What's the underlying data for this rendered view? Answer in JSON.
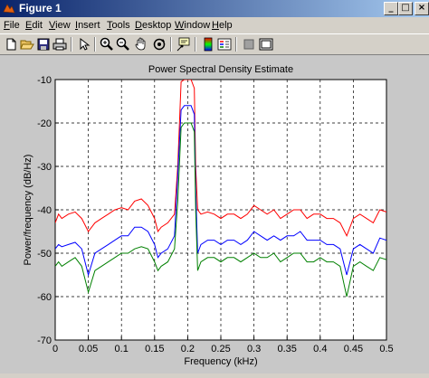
{
  "window": {
    "title": "Figure 1",
    "minimize_label": "_",
    "maximize_label": "□",
    "close_label": "×"
  },
  "menu": {
    "items": [
      {
        "label": "File"
      },
      {
        "label": "Edit"
      },
      {
        "label": "View"
      },
      {
        "label": "Insert"
      },
      {
        "label": "Tools"
      },
      {
        "label": "Desktop"
      },
      {
        "label": "Window"
      },
      {
        "label": "Help"
      }
    ]
  },
  "toolbar": {
    "buttons": [
      {
        "icon": "new-file-icon"
      },
      {
        "icon": "open-folder-icon"
      },
      {
        "icon": "save-icon"
      },
      {
        "icon": "print-icon"
      },
      {
        "icon": "edit-pointer-icon"
      },
      {
        "icon": "zoom-in-icon"
      },
      {
        "icon": "zoom-out-icon"
      },
      {
        "icon": "pan-hand-icon"
      },
      {
        "icon": "rotate-3d-icon"
      },
      {
        "icon": "data-cursor-icon"
      },
      {
        "icon": "colorbar-icon"
      },
      {
        "icon": "legend-icon"
      },
      {
        "icon": "hide-plot-tools-icon"
      },
      {
        "icon": "show-plot-tools-icon"
      }
    ]
  },
  "chart_data": {
    "type": "line",
    "title": "Power Spectral Density Estimate",
    "xlabel": "Frequency (kHz)",
    "ylabel": "Power/frequency (dB/Hz)",
    "xlim": [
      0,
      0.5
    ],
    "ylim": [
      -70,
      -10
    ],
    "xticks": [
      0,
      0.05,
      0.1,
      0.15,
      0.2,
      0.25,
      0.3,
      0.35,
      0.4,
      0.45,
      0.5
    ],
    "xtick_labels": [
      "0",
      "0.05",
      "0.1",
      "0.15",
      "0.2",
      "0.25",
      "0.3",
      "0.35",
      "0.4",
      "0.45",
      "0.5"
    ],
    "yticks": [
      -10,
      -20,
      -30,
      -40,
      -50,
      -60,
      -70
    ],
    "ytick_labels": [
      "-10",
      "-20",
      "-30",
      "-40",
      "-50",
      "-60",
      "-70"
    ],
    "grid": true,
    "grid_style": "dashed",
    "series": [
      {
        "color": "#ff0000",
        "x": [
          0,
          0.005,
          0.01,
          0.02,
          0.03,
          0.04,
          0.05,
          0.06,
          0.07,
          0.08,
          0.09,
          0.1,
          0.11,
          0.12,
          0.13,
          0.14,
          0.15,
          0.155,
          0.16,
          0.17,
          0.18,
          0.185,
          0.19,
          0.195,
          0.2,
          0.205,
          0.21,
          0.212,
          0.215,
          0.22,
          0.23,
          0.24,
          0.25,
          0.26,
          0.27,
          0.28,
          0.29,
          0.3,
          0.31,
          0.32,
          0.33,
          0.34,
          0.35,
          0.36,
          0.37,
          0.38,
          0.39,
          0.4,
          0.41,
          0.42,
          0.43,
          0.44,
          0.45,
          0.46,
          0.47,
          0.48,
          0.49,
          0.5
        ],
        "y": [
          -43,
          -41,
          -42,
          -41,
          -40.5,
          -42,
          -45,
          -43,
          -42,
          -41,
          -40,
          -39.5,
          -40,
          -38,
          -37.5,
          -39,
          -42,
          -45,
          -44,
          -43,
          -41,
          -30,
          -10.5,
          -10,
          -10,
          -10,
          -12,
          -30,
          -40,
          -41,
          -40.5,
          -41,
          -42,
          -41,
          -41,
          -42,
          -41,
          -39,
          -40,
          -41,
          -40,
          -42,
          -41,
          -40,
          -40,
          -42,
          -41,
          -41,
          -42,
          -42,
          -43,
          -46,
          -42,
          -41,
          -42,
          -43,
          -40,
          -40.5
        ]
      },
      {
        "color": "#0000ff",
        "x": [
          0,
          0.005,
          0.01,
          0.02,
          0.03,
          0.04,
          0.05,
          0.06,
          0.07,
          0.08,
          0.09,
          0.1,
          0.11,
          0.12,
          0.13,
          0.14,
          0.15,
          0.155,
          0.16,
          0.17,
          0.18,
          0.185,
          0.19,
          0.195,
          0.2,
          0.205,
          0.21,
          0.212,
          0.215,
          0.22,
          0.23,
          0.24,
          0.25,
          0.26,
          0.27,
          0.28,
          0.29,
          0.3,
          0.31,
          0.32,
          0.33,
          0.34,
          0.35,
          0.36,
          0.37,
          0.38,
          0.39,
          0.4,
          0.41,
          0.42,
          0.43,
          0.44,
          0.45,
          0.46,
          0.47,
          0.48,
          0.49,
          0.5
        ],
        "y": [
          -49,
          -48,
          -48.5,
          -48,
          -47.5,
          -49,
          -55,
          -50,
          -49,
          -48,
          -47,
          -46,
          -46,
          -44,
          -44,
          -45,
          -48,
          -51,
          -50,
          -49,
          -46,
          -32,
          -17,
          -16,
          -16,
          -16,
          -18,
          -35,
          -50,
          -48,
          -47,
          -47,
          -48,
          -47,
          -47,
          -48,
          -47,
          -45,
          -46,
          -47,
          -46,
          -47,
          -46,
          -46,
          -45,
          -47,
          -47,
          -47,
          -48,
          -48,
          -49,
          -55,
          -49,
          -48,
          -49,
          -50,
          -46.5,
          -47
        ]
      },
      {
        "color": "#008000",
        "x": [
          0,
          0.005,
          0.01,
          0.02,
          0.03,
          0.04,
          0.05,
          0.06,
          0.07,
          0.08,
          0.09,
          0.1,
          0.11,
          0.12,
          0.13,
          0.14,
          0.15,
          0.155,
          0.16,
          0.17,
          0.18,
          0.185,
          0.19,
          0.195,
          0.2,
          0.205,
          0.21,
          0.212,
          0.215,
          0.22,
          0.23,
          0.24,
          0.25,
          0.26,
          0.27,
          0.28,
          0.29,
          0.3,
          0.31,
          0.32,
          0.33,
          0.34,
          0.35,
          0.36,
          0.37,
          0.38,
          0.39,
          0.4,
          0.41,
          0.42,
          0.43,
          0.44,
          0.45,
          0.46,
          0.47,
          0.48,
          0.49,
          0.5
        ],
        "y": [
          -53,
          -52,
          -53,
          -52,
          -51,
          -53,
          -59,
          -54,
          -53,
          -52,
          -51,
          -50,
          -50,
          -49,
          -48.5,
          -49,
          -52,
          -54,
          -53,
          -52,
          -49,
          -38,
          -21,
          -20,
          -20,
          -20,
          -22,
          -40,
          -54,
          -52,
          -51,
          -51,
          -52,
          -51,
          -51,
          -52,
          -51,
          -50,
          -51,
          -51,
          -50,
          -52,
          -51,
          -50,
          -50,
          -52,
          -52,
          -51,
          -52,
          -52,
          -53,
          -60,
          -53,
          -52,
          -53,
          -54,
          -51,
          -51.5
        ]
      }
    ]
  }
}
